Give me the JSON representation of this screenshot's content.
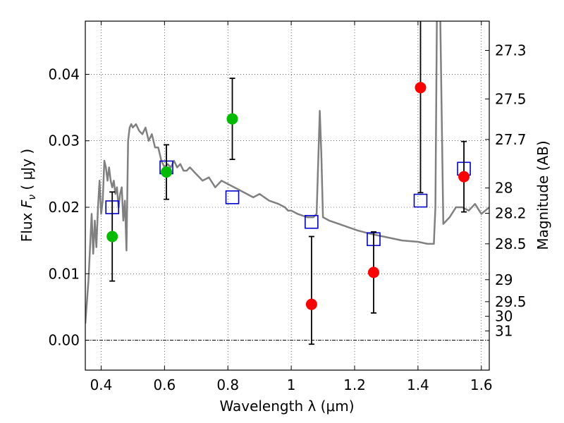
{
  "chart_data": {
    "type": "scatter",
    "xlabel": "Wavelength  λ (μm)",
    "ylabel": "Flux  F_ν  ( μJy )",
    "ylabel_parts": {
      "pre": "Flux  ",
      "sym": "F",
      "sub": "ν",
      "post": "  ( μJy )"
    },
    "ylabel_right": "Magnitude (AB)",
    "xlim": [
      0.35,
      1.625
    ],
    "ylim": [
      -0.0045,
      0.048
    ],
    "grid": true,
    "x_ticks": [
      0.4,
      0.6,
      0.8,
      1.0,
      1.2,
      1.4,
      1.6
    ],
    "x_tick_labels": [
      "0.4",
      "0.6",
      "0.8",
      "1",
      "1.2",
      "1.4",
      "1.6"
    ],
    "y_ticks": [
      0.0,
      0.01,
      0.02,
      0.03,
      0.04
    ],
    "y_tick_labels": [
      "0.00",
      "0.01",
      "0.02",
      "0.03",
      "0.04"
    ],
    "right_ticks": [
      {
        "label": "27.3",
        "flux": 0.0436
      },
      {
        "label": "27.5",
        "flux": 0.0363
      },
      {
        "label": "27.7",
        "flux": 0.0302
      },
      {
        "label": "28",
        "flux": 0.0229
      },
      {
        "label": "28.2",
        "flux": 0.0191
      },
      {
        "label": "28.5",
        "flux": 0.0145
      },
      {
        "label": "29",
        "flux": 0.0091
      },
      {
        "label": "29.5",
        "flux": 0.0058
      },
      {
        "label": "30",
        "flux": 0.0036
      },
      {
        "label": "31",
        "flux": 0.0014
      }
    ],
    "colors": {
      "model": "#808080",
      "box": "#0000cc",
      "green": "#00bb00",
      "red": "#ff0000",
      "errorbar": "#000000"
    },
    "series": [
      {
        "kind": "model",
        "x": [
          0.35,
          0.36,
          0.37,
          0.375,
          0.38,
          0.385,
          0.39,
          0.395,
          0.4,
          0.405,
          0.41,
          0.415,
          0.42,
          0.425,
          0.43,
          0.435,
          0.44,
          0.445,
          0.45,
          0.455,
          0.46,
          0.465,
          0.47,
          0.475,
          0.48,
          0.485,
          0.49,
          0.495,
          0.5,
          0.51,
          0.52,
          0.53,
          0.54,
          0.55,
          0.56,
          0.57,
          0.58,
          0.59,
          0.6,
          0.61,
          0.62,
          0.63,
          0.64,
          0.65,
          0.66,
          0.67,
          0.68,
          0.69,
          0.7,
          0.72,
          0.74,
          0.76,
          0.78,
          0.8,
          0.82,
          0.84,
          0.86,
          0.88,
          0.9,
          0.93,
          0.96,
          0.98,
          0.99,
          1.0,
          1.02,
          1.05,
          1.07,
          1.08,
          1.09,
          1.095,
          1.1,
          1.12,
          1.15,
          1.18,
          1.21,
          1.25,
          1.3,
          1.35,
          1.4,
          1.43,
          1.45,
          1.455,
          1.46,
          1.47,
          1.48,
          1.5,
          1.52,
          1.54,
          1.56,
          1.58,
          1.6,
          1.625
        ],
        "y": [
          0.0025,
          0.009,
          0.019,
          0.013,
          0.018,
          0.014,
          0.02,
          0.024,
          0.019,
          0.021,
          0.027,
          0.026,
          0.024,
          0.026,
          0.024,
          0.023,
          0.024,
          0.022,
          0.023,
          0.02,
          0.022,
          0.023,
          0.018,
          0.021,
          0.0135,
          0.03,
          0.032,
          0.0325,
          0.032,
          0.0325,
          0.0315,
          0.031,
          0.032,
          0.03,
          0.031,
          0.029,
          0.029,
          0.027,
          0.026,
          0.0265,
          0.026,
          0.027,
          0.026,
          0.0265,
          0.0255,
          0.0255,
          0.026,
          0.0255,
          0.025,
          0.024,
          0.0245,
          0.023,
          0.024,
          0.0235,
          0.023,
          0.0225,
          0.022,
          0.0215,
          0.022,
          0.021,
          0.0205,
          0.02,
          0.0195,
          0.0195,
          0.019,
          0.0185,
          0.0185,
          0.019,
          0.0345,
          0.028,
          0.0185,
          0.018,
          0.0175,
          0.017,
          0.0165,
          0.016,
          0.0155,
          0.015,
          0.0148,
          0.0145,
          0.0145,
          0.02,
          0.05,
          0.05,
          0.0175,
          0.0185,
          0.02,
          0.02,
          0.0195,
          0.0205,
          0.019,
          0.02
        ]
      },
      {
        "kind": "box",
        "name": "",
        "x": [
          0.435,
          0.606,
          0.814,
          1.064,
          1.26,
          1.408,
          1.545
        ],
        "y": [
          0.02,
          0.026,
          0.0215,
          0.0178,
          0.0152,
          0.021,
          0.0258
        ]
      },
      {
        "kind": "point",
        "name": "",
        "x": [
          0.435,
          0.606,
          0.814,
          1.064,
          1.26,
          1.408,
          1.545
        ],
        "y": [
          0.0156,
          0.0253,
          0.0333,
          0.0054,
          0.0102,
          0.038,
          0.0246
        ],
        "yerr_low": [
          0.0067,
          0.0041,
          0.0061,
          0.006,
          0.0061,
          0.0158,
          0.0053
        ],
        "yerr_high": [
          0.0067,
          0.0041,
          0.0061,
          0.0102,
          0.0061,
          0.011,
          0.0053
        ],
        "point_colors": [
          "green",
          "green",
          "green",
          "red",
          "red",
          "red",
          "red"
        ]
      }
    ]
  }
}
